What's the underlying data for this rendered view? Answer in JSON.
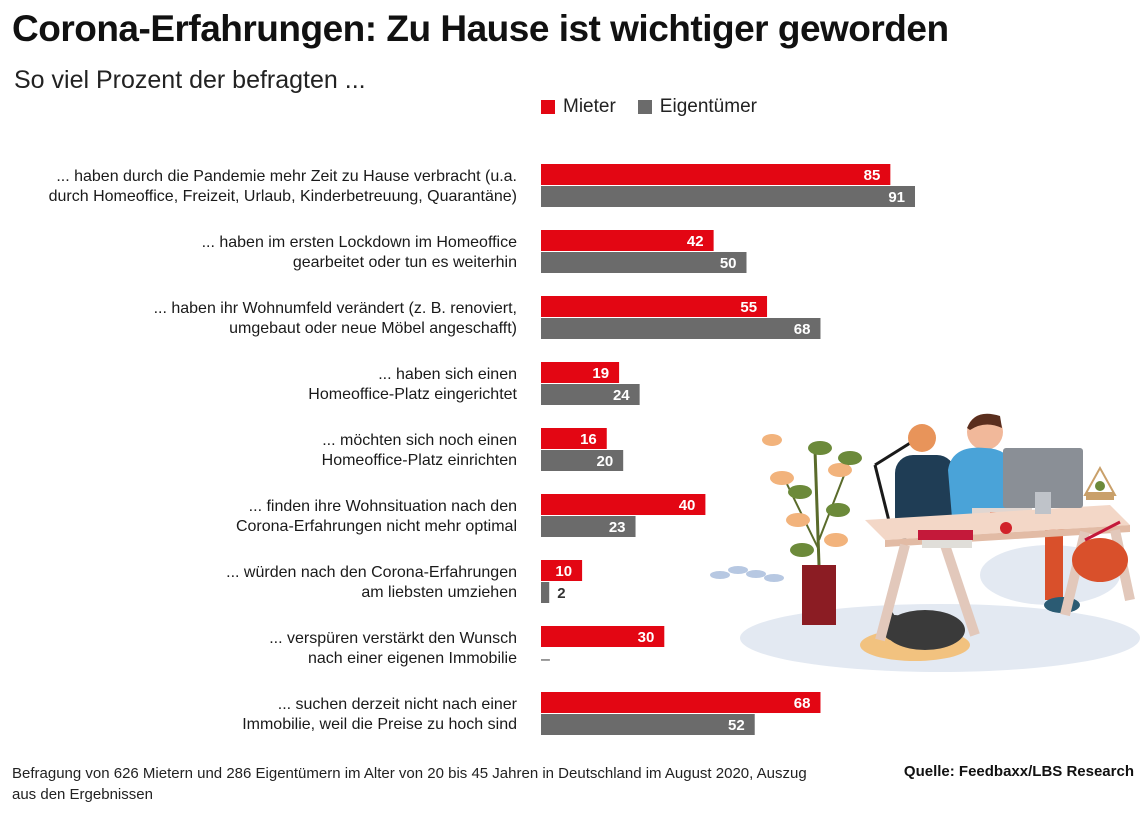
{
  "title": "Corona-Erfahrungen: Zu Hause ist wichtiger geworden",
  "subtitle": "So viel Prozent der befragten ...",
  "colors": {
    "mieter": "#e30613",
    "eigentuemer": "#6b6b6b"
  },
  "chart_data": {
    "type": "bar",
    "orientation": "horizontal",
    "legend_position": "top",
    "unit": "%",
    "xlim": [
      0,
      100
    ],
    "grid": false,
    "categories": [
      [
        "... haben durch die Pandemie mehr Zeit zu Hause verbracht (u.a.",
        "durch Homeoffice, Freizeit, Urlaub, Kinderbetreuung, Quarantäne)"
      ],
      [
        "... haben im ersten Lockdown im Homeoffice",
        "gearbeitet oder tun es weiterhin"
      ],
      [
        "... haben ihr Wohnumfeld verändert (z. B. renoviert,",
        "umgebaut oder neue Möbel angeschafft)"
      ],
      [
        "... haben sich einen",
        "Homeoffice-Platz eingerichtet"
      ],
      [
        "... möchten sich noch einen",
        "Homeoffice-Platz einrichten"
      ],
      [
        "... finden ihre Wohnsituation nach den",
        "Corona-Erfahrungen nicht mehr optimal"
      ],
      [
        "... würden nach den Corona-Erfahrungen",
        "am liebsten umziehen"
      ],
      [
        "... verspüren verstärkt den Wunsch",
        "nach einer eigenen Immobilie"
      ],
      [
        "... suchen derzeit nicht nach einer",
        "Immobilie, weil die Preise zu hoch sind"
      ]
    ],
    "series": [
      {
        "name": "Mieter",
        "color": "#e30613",
        "values": [
          85,
          42,
          55,
          19,
          16,
          40,
          10,
          30,
          68
        ]
      },
      {
        "name": "Eigentümer",
        "color": "#6b6b6b",
        "values": [
          91,
          50,
          68,
          24,
          20,
          23,
          2,
          null,
          52
        ]
      }
    ],
    "missing_label": "–"
  },
  "footnote": "Befragung von 626 Mietern und 286 Eigentümern im Alter von 20 bis 45 Jahren in Deutschland im August 2020, Auszug aus den Ergebnissen",
  "source": "Quelle: Feedbaxx/LBS Research"
}
